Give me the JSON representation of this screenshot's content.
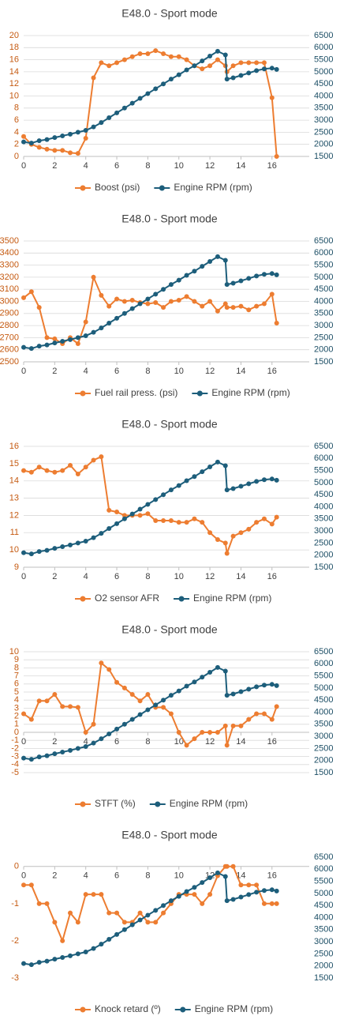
{
  "chart_data": [
    {
      "type": "line",
      "title": "E48.0 - Sport mode",
      "x": [
        0,
        0.5,
        1,
        1.5,
        2,
        2.5,
        3,
        3.5,
        4,
        4.5,
        5,
        5.5,
        6,
        6.5,
        7,
        7.5,
        8,
        8.5,
        9,
        9.5,
        10,
        10.5,
        11,
        11.5,
        12,
        12.5,
        13,
        13.1,
        13.5,
        14,
        14.5,
        15,
        15.5,
        16,
        16.3
      ],
      "xlim": [
        0,
        18.4
      ],
      "xticks": [
        0,
        2,
        4,
        6,
        8,
        10,
        12,
        14,
        16
      ],
      "ylim": [
        0,
        20
      ],
      "yticks": [
        0,
        2,
        4,
        6,
        8,
        10,
        12,
        14,
        16,
        18,
        20
      ],
      "y2lim": [
        1500,
        6500
      ],
      "y2ticks": [
        1500,
        2000,
        2500,
        3000,
        3500,
        4000,
        4500,
        5000,
        5500,
        6000,
        6500
      ],
      "grid": true,
      "series": [
        {
          "name": "Boost (psi)",
          "color": "#ed7d31",
          "values": [
            3.3,
            2,
            1.5,
            1.2,
            1,
            1,
            0.6,
            0.5,
            3,
            13,
            15.5,
            15,
            15.5,
            16,
            16.5,
            17,
            17,
            17.5,
            17,
            16.5,
            16.5,
            16,
            15,
            14.5,
            15,
            16,
            15,
            14,
            15,
            15.5,
            15.5,
            15.5,
            15.5,
            9.7,
            0
          ]
        },
        {
          "name": "Engine RPM (rpm)",
          "color": "#1d5e7b",
          "axis": "y2",
          "values": [
            2100,
            2050,
            2150,
            2200,
            2280,
            2350,
            2420,
            2500,
            2580,
            2720,
            2900,
            3100,
            3300,
            3500,
            3700,
            3900,
            4100,
            4300,
            4500,
            4700,
            4880,
            5080,
            5250,
            5450,
            5650,
            5850,
            5700,
            4700,
            4750,
            4850,
            4950,
            5050,
            5120,
            5150,
            5100
          ]
        }
      ]
    },
    {
      "type": "line",
      "title": "E48.0 - Sport mode",
      "x": [
        0,
        0.5,
        1,
        1.5,
        2,
        2.5,
        3,
        3.5,
        4,
        4.5,
        5,
        5.5,
        6,
        6.5,
        7,
        7.5,
        8,
        8.5,
        9,
        9.5,
        10,
        10.5,
        11,
        11.5,
        12,
        12.5,
        13,
        13.1,
        13.5,
        14,
        14.5,
        15,
        15.5,
        16,
        16.3
      ],
      "xlim": [
        0,
        18.4
      ],
      "xticks": [
        0,
        2,
        4,
        6,
        8,
        10,
        12,
        14,
        16
      ],
      "ylim": [
        2500,
        3500
      ],
      "yticks": [
        2500,
        2600,
        2700,
        2800,
        2900,
        3000,
        3100,
        3200,
        3300,
        3400,
        3500
      ],
      "y2lim": [
        1500,
        6500
      ],
      "y2ticks": [
        1500,
        2000,
        2500,
        3000,
        3500,
        4000,
        4500,
        5000,
        5500,
        6000,
        6500
      ],
      "grid": true,
      "series": [
        {
          "name": "Fuel rail press. (psi)",
          "color": "#ed7d31",
          "values": [
            3030,
            3080,
            2950,
            2700,
            2690,
            2650,
            2700,
            2650,
            2830,
            3200,
            3050,
            2960,
            3020,
            3000,
            3010,
            2990,
            2980,
            2990,
            2950,
            3000,
            3010,
            3040,
            3000,
            2960,
            3000,
            2920,
            2980,
            2950,
            2950,
            2960,
            2930,
            2960,
            2980,
            3060,
            2820
          ]
        },
        {
          "name": "Engine RPM (rpm)",
          "color": "#1d5e7b",
          "axis": "y2",
          "values": [
            2100,
            2050,
            2150,
            2200,
            2280,
            2350,
            2420,
            2500,
            2580,
            2720,
            2900,
            3100,
            3300,
            3500,
            3700,
            3900,
            4100,
            4300,
            4500,
            4700,
            4880,
            5080,
            5250,
            5450,
            5650,
            5850,
            5700,
            4700,
            4750,
            4850,
            4950,
            5050,
            5120,
            5150,
            5100
          ]
        }
      ]
    },
    {
      "type": "line",
      "title": "E48.0 - Sport mode",
      "x": [
        0,
        0.5,
        1,
        1.5,
        2,
        2.5,
        3,
        3.5,
        4,
        4.5,
        5,
        5.5,
        6,
        6.5,
        7,
        7.5,
        8,
        8.5,
        9,
        9.5,
        10,
        10.5,
        11,
        11.5,
        12,
        12.5,
        13,
        13.1,
        13.5,
        14,
        14.5,
        15,
        15.5,
        16,
        16.3
      ],
      "xlim": [
        0,
        18.4
      ],
      "xticks": [
        0,
        2,
        4,
        6,
        8,
        10,
        12,
        14,
        16
      ],
      "ylim": [
        9,
        16
      ],
      "yticks": [
        9,
        10,
        11,
        12,
        13,
        14,
        15,
        16
      ],
      "y2lim": [
        1500,
        6500
      ],
      "y2ticks": [
        1500,
        2000,
        2500,
        3000,
        3500,
        4000,
        4500,
        5000,
        5500,
        6000,
        6500
      ],
      "grid": true,
      "series": [
        {
          "name": "O2 sensor AFR",
          "color": "#ed7d31",
          "values": [
            14.6,
            14.5,
            14.8,
            14.6,
            14.5,
            14.6,
            14.9,
            14.4,
            14.8,
            15.2,
            15.4,
            12.3,
            12.2,
            12,
            12,
            12,
            12.1,
            11.7,
            11.7,
            11.7,
            11.6,
            11.6,
            11.8,
            11.6,
            11,
            10.6,
            10.4,
            9.8,
            10.8,
            11,
            11.2,
            11.6,
            11.8,
            11.5,
            11.9
          ]
        },
        {
          "name": "Engine RPM (rpm)",
          "color": "#1d5e7b",
          "axis": "y2",
          "values": [
            2100,
            2050,
            2150,
            2200,
            2280,
            2350,
            2420,
            2500,
            2580,
            2720,
            2900,
            3100,
            3300,
            3500,
            3700,
            3900,
            4100,
            4300,
            4500,
            4700,
            4880,
            5080,
            5250,
            5450,
            5650,
            5850,
            5700,
            4700,
            4750,
            4850,
            4950,
            5050,
            5120,
            5150,
            5100
          ]
        }
      ]
    },
    {
      "type": "line",
      "title": "E48.0 - Sport mode",
      "x": [
        0,
        0.5,
        1,
        1.5,
        2,
        2.5,
        3,
        3.5,
        4,
        4.5,
        5,
        5.5,
        6,
        6.5,
        7,
        7.5,
        8,
        8.5,
        9,
        9.5,
        10,
        10.5,
        11,
        11.5,
        12,
        12.5,
        13,
        13.1,
        13.5,
        14,
        14.5,
        15,
        15.5,
        16,
        16.3
      ],
      "xlim": [
        0,
        18.4
      ],
      "xticks": [
        0,
        2,
        4,
        6,
        8,
        10,
        12,
        14,
        16
      ],
      "ylim": [
        -5,
        10
      ],
      "yticks": [
        -5,
        -4,
        -3,
        -2,
        -1,
        0,
        1,
        2,
        3,
        4,
        5,
        6,
        7,
        8,
        9,
        10
      ],
      "y2lim": [
        1500,
        6500
      ],
      "y2ticks": [
        1500,
        2000,
        2500,
        3000,
        3500,
        4000,
        4500,
        5000,
        5500,
        6000,
        6500
      ],
      "grid": true,
      "series": [
        {
          "name": "STFT (%)",
          "color": "#ed7d31",
          "values": [
            2.3,
            1.6,
            3.9,
            3.9,
            4.7,
            3.2,
            3.2,
            3.1,
            0,
            1,
            8.6,
            7.8,
            6.2,
            5.5,
            4.7,
            3.9,
            4.7,
            3.1,
            3.1,
            2.3,
            0,
            -1.6,
            -0.8,
            0,
            0,
            0,
            0.8,
            -1.6,
            0.8,
            0.8,
            1.6,
            2.3,
            2.3,
            1.6,
            3.2
          ]
        },
        {
          "name": "Engine RPM (rpm)",
          "color": "#1d5e7b",
          "axis": "y2",
          "values": [
            2100,
            2050,
            2150,
            2200,
            2280,
            2350,
            2420,
            2500,
            2580,
            2720,
            2900,
            3100,
            3300,
            3500,
            3700,
            3900,
            4100,
            4300,
            4500,
            4700,
            4880,
            5080,
            5250,
            5450,
            5650,
            5850,
            5700,
            4700,
            4750,
            4850,
            4950,
            5050,
            5120,
            5150,
            5100
          ]
        }
      ]
    },
    {
      "type": "line",
      "title": "E48.0 - Sport mode",
      "x": [
        0,
        0.5,
        1,
        1.5,
        2,
        2.5,
        3,
        3.5,
        4,
        4.5,
        5,
        5.5,
        6,
        6.5,
        7,
        7.5,
        8,
        8.5,
        9,
        9.5,
        10,
        10.5,
        11,
        11.5,
        12,
        12.5,
        13,
        13.1,
        13.5,
        14,
        14.5,
        15,
        15.5,
        16,
        16.3
      ],
      "xlim": [
        0,
        18.4
      ],
      "xticks": [
        0,
        2,
        4,
        6,
        8,
        10,
        12,
        14,
        16
      ],
      "ylim": [
        -3,
        0.25
      ],
      "yticks": [
        -3,
        -2,
        -1,
        0
      ],
      "y2lim": [
        1500,
        6500
      ],
      "y2ticks": [
        1500,
        2000,
        2500,
        3000,
        3500,
        4000,
        4500,
        5000,
        5500,
        6000,
        6500
      ],
      "grid": false,
      "series": [
        {
          "name": "Knock retard (º)",
          "color": "#ed7d31",
          "values": [
            -0.5,
            -0.5,
            -1,
            -1,
            -1.5,
            -2,
            -1.25,
            -1.5,
            -0.75,
            -0.75,
            -0.75,
            -1.25,
            -1.25,
            -1.5,
            -1.5,
            -1.25,
            -1.5,
            -1.5,
            -1.25,
            -1,
            -0.75,
            -0.75,
            -0.75,
            -1,
            -0.75,
            -0.25,
            0,
            0,
            0,
            -0.5,
            -0.5,
            -0.5,
            -1,
            -1,
            -1
          ]
        },
        {
          "name": "Engine RPM (rpm)",
          "color": "#1d5e7b",
          "axis": "y2",
          "values": [
            2100,
            2050,
            2150,
            2200,
            2280,
            2350,
            2420,
            2500,
            2580,
            2720,
            2900,
            3100,
            3300,
            3500,
            3700,
            3900,
            4100,
            4300,
            4500,
            4700,
            4880,
            5080,
            5250,
            5450,
            5650,
            5850,
            5700,
            4700,
            4750,
            4850,
            4950,
            5050,
            5120,
            5150,
            5100
          ]
        }
      ]
    }
  ]
}
